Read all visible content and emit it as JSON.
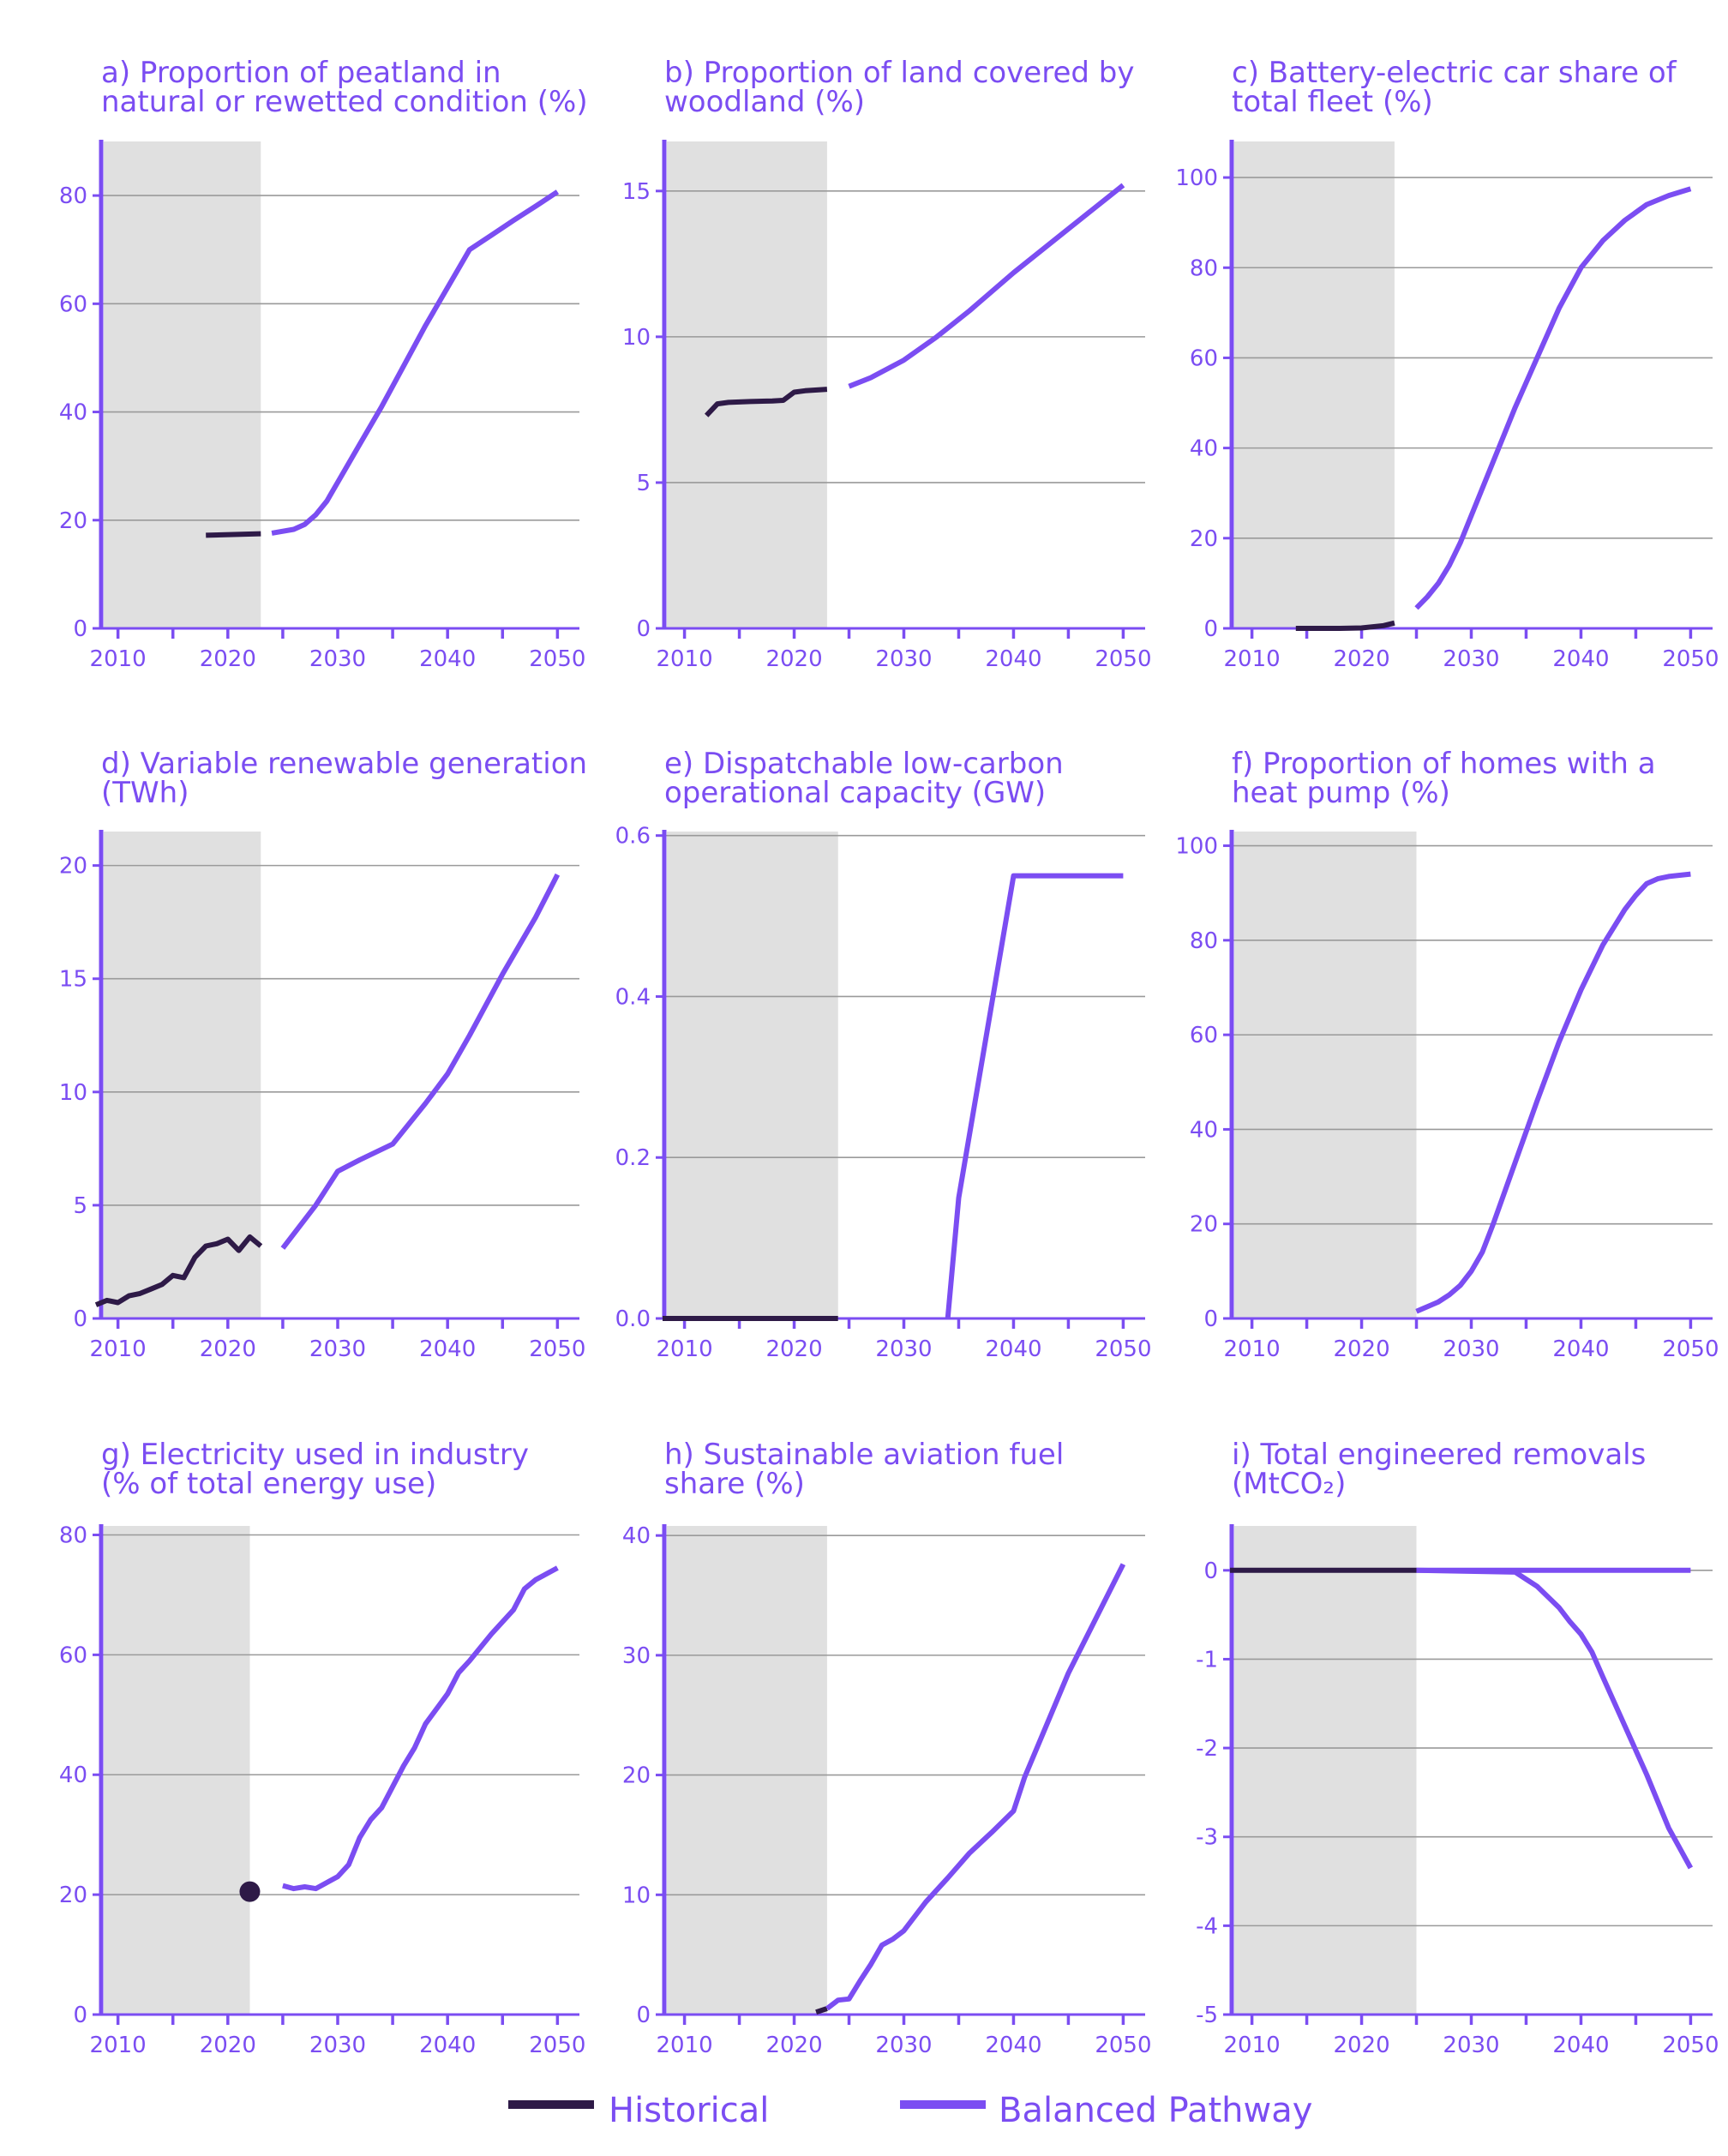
{
  "colors": {
    "historical": "#2e1a47",
    "pathway": "#7b4df2",
    "axis": "#7b4df2",
    "shade": "#e0e0e0",
    "grid": "#9a9a9a"
  },
  "legend": [
    {
      "label": "Historical",
      "color": "#2e1a47"
    },
    {
      "label": "Balanced Pathway",
      "color": "#7b4df2"
    }
  ],
  "chart_data": [
    {
      "id": "a",
      "type": "line",
      "title": [
        "a) Proportion of peatland in",
        "natural or rewetted condition (%)"
      ],
      "xlim": [
        2008,
        2052
      ],
      "ylim": [
        0,
        90
      ],
      "yticks": [
        0,
        20,
        40,
        60,
        80
      ],
      "xticks": [
        2010,
        2020,
        2030,
        2040,
        2050
      ],
      "shade_end": 2023,
      "series": [
        {
          "kind": "historical",
          "x": [
            2018,
            2023
          ],
          "y": [
            17.2,
            17.5
          ]
        },
        {
          "kind": "pathway",
          "x": [
            2024,
            2026,
            2027,
            2028,
            2029,
            2030,
            2032,
            2034,
            2036,
            2038,
            2040,
            2042,
            2044,
            2046,
            2048,
            2050
          ],
          "y": [
            17.6,
            18.3,
            19.2,
            21,
            23.5,
            27,
            34,
            41,
            48.5,
            56,
            63,
            70,
            72.7,
            75.4,
            78,
            80.7
          ]
        }
      ]
    },
    {
      "id": "b",
      "type": "line",
      "title": [
        "b) Proportion of land covered by",
        "woodland (%)"
      ],
      "xlim": [
        2008,
        2052
      ],
      "ylim": [
        0,
        16.7
      ],
      "yticks": [
        0,
        5,
        10,
        15
      ],
      "xticks": [
        2010,
        2020,
        2030,
        2040,
        2050
      ],
      "shade_end": 2023,
      "series": [
        {
          "kind": "historical",
          "x": [
            2012,
            2013,
            2014,
            2016,
            2018,
            2019,
            2020,
            2021,
            2023
          ],
          "y": [
            7.3,
            7.7,
            7.75,
            7.78,
            7.8,
            7.82,
            8.1,
            8.15,
            8.2
          ]
        },
        {
          "kind": "pathway",
          "x": [
            2025,
            2027,
            2030,
            2033,
            2036,
            2040,
            2045,
            2050
          ],
          "y": [
            8.3,
            8.6,
            9.2,
            10.0,
            10.9,
            12.2,
            13.7,
            15.2
          ]
        }
      ]
    },
    {
      "id": "c",
      "type": "line",
      "title": [
        "c) Battery-electric car share of",
        "total fleet (%)"
      ],
      "xlim": [
        2008,
        2052
      ],
      "ylim": [
        0,
        108
      ],
      "yticks": [
        0,
        20,
        40,
        60,
        80,
        100
      ],
      "xticks": [
        2010,
        2020,
        2030,
        2040,
        2050
      ],
      "shade_end": 2023,
      "series": [
        {
          "kind": "historical",
          "x": [
            2014,
            2016,
            2018,
            2020,
            2022,
            2023
          ],
          "y": [
            0,
            0,
            0,
            0.1,
            0.6,
            1.2
          ]
        },
        {
          "kind": "pathway",
          "x": [
            2025,
            2026,
            2027,
            2028,
            2029,
            2030,
            2032,
            2034,
            2036,
            2038,
            2040,
            2042,
            2044,
            2046,
            2048,
            2050
          ],
          "y": [
            4.5,
            7,
            10,
            14,
            19,
            25,
            37,
            49,
            60,
            71,
            80,
            86,
            90.5,
            94,
            96,
            97.5
          ]
        }
      ]
    },
    {
      "id": "d",
      "type": "line",
      "title": [
        "d) Variable renewable generation",
        "(TWh)"
      ],
      "xlim": [
        2008,
        2052
      ],
      "ylim": [
        0,
        21.5
      ],
      "yticks": [
        0,
        5,
        10,
        15,
        20
      ],
      "xticks": [
        2010,
        2020,
        2030,
        2040,
        2050
      ],
      "shade_end": 2023,
      "series": [
        {
          "kind": "historical",
          "x": [
            2008,
            2009,
            2010,
            2011,
            2012,
            2013,
            2014,
            2015,
            2016,
            2017,
            2018,
            2019,
            2020,
            2021,
            2022,
            2023
          ],
          "y": [
            0.6,
            0.8,
            0.7,
            1.0,
            1.1,
            1.3,
            1.5,
            1.9,
            1.8,
            2.7,
            3.2,
            3.3,
            3.5,
            3.0,
            3.6,
            3.2
          ]
        },
        {
          "kind": "pathway",
          "x": [
            2025,
            2028,
            2030,
            2032,
            2035,
            2038,
            2040,
            2042,
            2045,
            2048,
            2050
          ],
          "y": [
            3.1,
            5.0,
            6.5,
            7.0,
            7.7,
            9.5,
            10.8,
            12.5,
            15.2,
            17.7,
            19.6
          ]
        }
      ]
    },
    {
      "id": "e",
      "type": "line",
      "title": [
        "e) Dispatchable low-carbon",
        "operational capacity (GW)"
      ],
      "xlim": [
        2008,
        2052
      ],
      "ylim": [
        0,
        0.605
      ],
      "yticks": [
        0.0,
        0.2,
        0.4,
        0.6
      ],
      "ytick_labels": [
        "0.0",
        "0.2",
        "0.4",
        "0.6"
      ],
      "xticks": [
        2010,
        2020,
        2030,
        2040,
        2050
      ],
      "shade_end": 2024,
      "series": [
        {
          "kind": "historical",
          "x": [
            2008,
            2024
          ],
          "y": [
            0,
            0
          ]
        },
        {
          "kind": "pathway",
          "x": [
            2034,
            2035,
            2040,
            2050
          ],
          "y": [
            0,
            0.15,
            0.55,
            0.55
          ]
        }
      ]
    },
    {
      "id": "f",
      "type": "line",
      "title": [
        "f) Proportion of homes with a",
        "heat pump (%)"
      ],
      "xlim": [
        2008,
        2052
      ],
      "ylim": [
        0,
        103
      ],
      "yticks": [
        0,
        20,
        40,
        60,
        80,
        100
      ],
      "xticks": [
        2010,
        2020,
        2030,
        2040,
        2050
      ],
      "shade_end": 2025,
      "series": [
        {
          "kind": "pathway",
          "x": [
            2025,
            2026,
            2027,
            2028,
            2029,
            2030,
            2031,
            2032,
            2034,
            2036,
            2038,
            2040,
            2042,
            2044,
            2045,
            2046,
            2047,
            2048,
            2050
          ],
          "y": [
            1.5,
            2.5,
            3.5,
            5,
            7,
            10,
            14,
            20,
            33,
            46,
            58.5,
            69.5,
            79,
            86.5,
            89.5,
            92,
            93,
            93.5,
            94
          ]
        }
      ]
    },
    {
      "id": "g",
      "type": "line",
      "title": [
        "g) Electricity used in industry",
        "(% of total energy use)"
      ],
      "xlim": [
        2008,
        2052
      ],
      "ylim": [
        0,
        81.5
      ],
      "yticks": [
        0,
        20,
        40,
        60,
        80
      ],
      "xticks": [
        2010,
        2020,
        2030,
        2040,
        2050
      ],
      "shade_end": 2022,
      "series": [
        {
          "kind": "point",
          "x": [
            2022
          ],
          "y": [
            20.5
          ]
        },
        {
          "kind": "pathway",
          "x": [
            2025,
            2026,
            2027,
            2028,
            2030,
            2031,
            2032,
            2033,
            2034,
            2035,
            2036,
            2037,
            2038,
            2040,
            2041,
            2042,
            2044,
            2046,
            2047,
            2048,
            2050
          ],
          "y": [
            21.5,
            21,
            21.3,
            21,
            23,
            25,
            29.5,
            32.5,
            34.5,
            38,
            41.5,
            44.5,
            48.5,
            53.5,
            57,
            59,
            63.5,
            67.5,
            71,
            72.5,
            74.5
          ]
        }
      ]
    },
    {
      "id": "h",
      "type": "line",
      "title": [
        "h) Sustainable aviation fuel",
        "share (%)"
      ],
      "xlim": [
        2008,
        2052
      ],
      "ylim": [
        0,
        40.8
      ],
      "yticks": [
        0,
        10,
        20,
        30,
        40
      ],
      "xticks": [
        2010,
        2020,
        2030,
        2040,
        2050
      ],
      "shade_end": 2023,
      "series": [
        {
          "kind": "historical",
          "x": [
            2022,
            2023
          ],
          "y": [
            0.2,
            0.5
          ]
        },
        {
          "kind": "pathway",
          "x": [
            2023,
            2024,
            2025,
            2026,
            2027,
            2028,
            2029,
            2030,
            2032,
            2034,
            2036,
            2038,
            2040,
            2041,
            2045,
            2050
          ],
          "y": [
            0.5,
            1.2,
            1.3,
            2.8,
            4.2,
            5.8,
            6.3,
            7.0,
            9.4,
            11.4,
            13.5,
            15.2,
            17.0,
            19.8,
            28.5,
            37.6
          ]
        }
      ]
    },
    {
      "id": "i",
      "type": "line",
      "title": [
        "i) Total engineered removals",
        "(MtCO₂)"
      ],
      "xlim": [
        2008,
        2052
      ],
      "ylim": [
        -5,
        0.5
      ],
      "yticks": [
        -5,
        -4,
        -3,
        -2,
        -1,
        0
      ],
      "xticks": [
        2010,
        2020,
        2030,
        2040,
        2050
      ],
      "shade_end": 2025,
      "series": [
        {
          "kind": "historical",
          "x": [
            2008,
            2025
          ],
          "y": [
            0,
            0
          ]
        },
        {
          "kind": "pathway",
          "x": [
            2025,
            2050
          ],
          "y": [
            0,
            0
          ]
        },
        {
          "kind": "pathway",
          "x": [
            2025,
            2034,
            2035,
            2036,
            2037,
            2038,
            2039,
            2040,
            2041,
            2042,
            2044,
            2046,
            2048,
            2050
          ],
          "y": [
            0,
            -0.02,
            -0.1,
            -0.18,
            -0.3,
            -0.42,
            -0.58,
            -0.72,
            -0.92,
            -1.2,
            -1.75,
            -2.3,
            -2.9,
            -3.35
          ]
        }
      ]
    }
  ]
}
